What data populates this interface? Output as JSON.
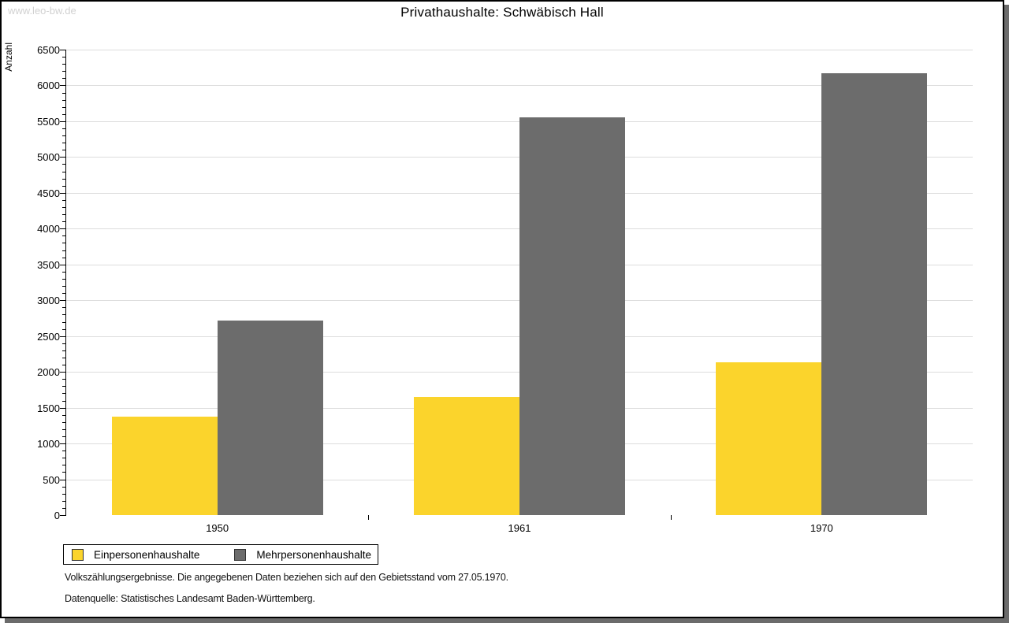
{
  "watermark": "www.leo-bw.de",
  "header": {
    "title": "Privathaushalte: Schwäbisch Hall"
  },
  "chart_data": {
    "type": "bar",
    "title": "Privathaushalte: Schwäbisch Hall",
    "xlabel": "",
    "ylabel": "Anzahl",
    "categories": [
      "1950",
      "1961",
      "1970"
    ],
    "series": [
      {
        "name": "Einpersonenhaushalte",
        "color": "#FBD42C",
        "values": [
          1375,
          1650,
          2135
        ]
      },
      {
        "name": "Mehrpersonenhaushalte",
        "color": "#6C6C6C",
        "values": [
          2720,
          5550,
          6170
        ]
      }
    ],
    "ylim": [
      0,
      6500
    ],
    "y_major_step": 500,
    "y_minor_step": 100,
    "grid": true,
    "legend_position": "bottom-left"
  },
  "footnotes": [
    "Volkszählungsergebnisse. Die angegebenen Daten beziehen sich auf den Gebietsstand vom 27.05.1970.",
    "Datenquelle: Statistisches Landesamt Baden-Württemberg."
  ]
}
